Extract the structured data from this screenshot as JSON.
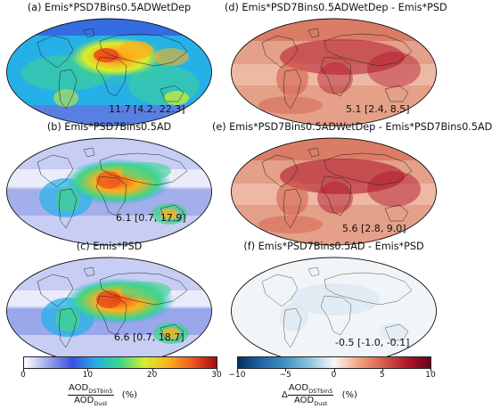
{
  "panels": [
    {
      "title": "(a) Emis*PSD7Bins0.5ADWetDep",
      "stat": "11.7 [4.2, 22.3]",
      "scale": "aod"
    },
    {
      "title": "(b) Emis*PSD7Bins0.5AD",
      "stat": "6.1 [0.7, 17.9]",
      "scale": "aod"
    },
    {
      "title": "(c) Emis*PSD",
      "stat": "6.6 [0.7, 18.7]",
      "scale": "aod"
    },
    {
      "title": "(d) Emis*PSD7Bins0.5ADWetDep - Emis*PSD",
      "stat": "5.1 [2.4, 8.5]",
      "scale": "diff"
    },
    {
      "title": "(e) Emis*PSD7Bins0.5ADWetDep - Emis*PSD7Bins0.5AD",
      "stat": "5.6 [2.8, 9.0]",
      "scale": "diff"
    },
    {
      "title": "(f) Emis*PSD7Bins0.5AD - Emis*PSD",
      "stat": "-0.5 [-1.0, -0.1]",
      "scale": "diff"
    }
  ],
  "colorbar_left": {
    "ticks": [
      "0",
      "10",
      "20",
      "30"
    ],
    "range": [
      0,
      30
    ],
    "num": "AOD",
    "num_sub": "DSTbin5",
    "den": "AOD",
    "den_sub": "Dust",
    "unit": "(%)",
    "colors": [
      "#ffffff",
      "#9aa8e8",
      "#3a50e0",
      "#26b0e8",
      "#3fd58a",
      "#d6ef2e",
      "#fbb21d",
      "#f0571f",
      "#a00f10"
    ]
  },
  "colorbar_right": {
    "ticks": [
      "−10",
      "−5",
      "0",
      "5",
      "10"
    ],
    "range": [
      -10,
      10
    ],
    "prefix": "Δ",
    "num": "AOD",
    "num_sub": "DSTbin5",
    "den": "AOD",
    "den_sub": "Dust",
    "unit": "(%)",
    "colors": [
      "#053061",
      "#2166ac",
      "#4393c3",
      "#92c5de",
      "#f7f7f7",
      "#f4a582",
      "#d6604d",
      "#b2182b",
      "#67001f"
    ]
  }
}
